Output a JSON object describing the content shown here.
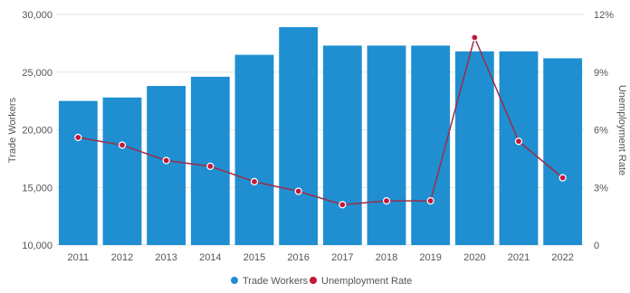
{
  "chart_data": {
    "type": "bar",
    "categories": [
      "2011",
      "2012",
      "2013",
      "2014",
      "2015",
      "2016",
      "2017",
      "2018",
      "2019",
      "2020",
      "2021",
      "2022"
    ],
    "series": [
      {
        "name": "Trade Workers",
        "type": "bar",
        "axis": "left",
        "color": "#1f8fd1",
        "values": [
          22500,
          22800,
          23800,
          24600,
          26500,
          28900,
          27300,
          27300,
          27300,
          26800,
          26800,
          26200
        ]
      },
      {
        "name": "Unemployment Rate",
        "type": "line",
        "axis": "right",
        "color": "#c4163a",
        "line_color": "#9b2d48",
        "values": [
          5.6,
          5.2,
          4.4,
          4.1,
          3.3,
          2.8,
          2.1,
          2.3,
          2.3,
          10.8,
          5.4,
          3.5
        ]
      }
    ],
    "yaxis_left": {
      "title": "Trade Workers",
      "min": 10000,
      "max": 30000,
      "ticks": [
        10000,
        15000,
        20000,
        25000,
        30000
      ],
      "tick_labels": [
        "10,000",
        "15,000",
        "20,000",
        "25,000",
        "30,000"
      ]
    },
    "yaxis_right": {
      "title": "Unemployment Rate",
      "min": 0,
      "max": 12,
      "ticks": [
        0,
        3,
        6,
        9,
        12
      ],
      "tick_labels": [
        "0",
        "3%",
        "6%",
        "9%",
        "12%"
      ]
    },
    "grid": true,
    "legend_position": "bottom-center"
  }
}
